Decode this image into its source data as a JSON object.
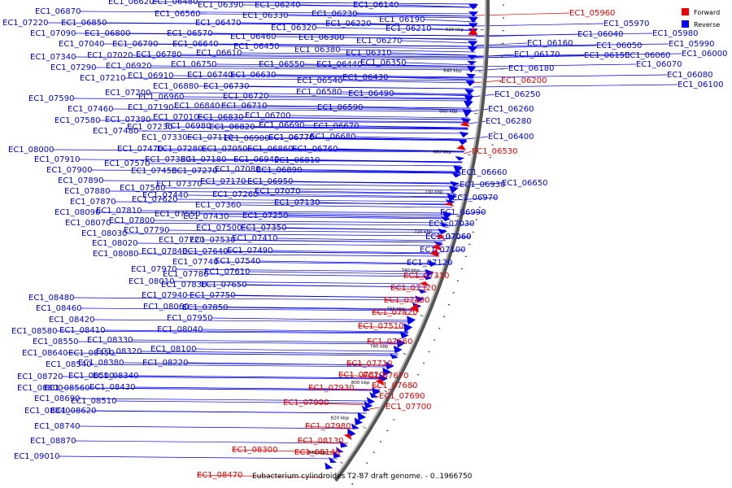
{
  "title": "Eubacterium cylindroides T2-87 draft genome. - 0..1966750",
  "legend": [
    {
      "label": "Forward",
      "color": "#ee0000"
    },
    {
      "label": "Reverse",
      "color": "#0000ee"
    }
  ],
  "ticks": [
    "580 kbp",
    "600 kbp",
    "620 kbp",
    "640 kbp",
    "660 kbp",
    "680 kbp",
    "700 kbp",
    "720 kbp",
    "740 kbp",
    "760 kbp",
    "780 kbp",
    "800 kbp",
    "820 kbp",
    "840 kbp"
  ],
  "reverse_labels": [
    "EC1_06620",
    "EC1_06480",
    "EC1_06390",
    "EC1_06240",
    "EC1_06140",
    "EC1_06870",
    "EC1_06560",
    "EC1_06330",
    "EC1_06230",
    "EC1_06190",
    "EC1_07220",
    "EC1_06850",
    "EC1_06470",
    "EC1_06320",
    "EC1_06220",
    "EC1_06210",
    "EC1_07090",
    "EC1_06800",
    "EC1_06570",
    "EC1_06460",
    "EC1_06300",
    "EC1_06270",
    "EC1_07040",
    "EC1_06790",
    "EC1_06640",
    "EC1_06450",
    "EC1_06380",
    "EC1_06310",
    "EC1_07340",
    "EC1_07020",
    "EC1_06770",
    "EC1_06610",
    "EC1_06550",
    "EC1_06440",
    "EC1_06350",
    "EC1_07290",
    "EC1_06920",
    "EC1_06780",
    "EC1_06750",
    "EC1_06630",
    "EC1_06540",
    "EC1_06430",
    "EC1_07210",
    "EC1_06910",
    "EC1_06740",
    "EC1_06880",
    "EC1_06730",
    "EC1_06580",
    "EC1_06490",
    "EC1_07200",
    "EC1_06960",
    "EC1_06720",
    "EC1_07590",
    "EC1_07460",
    "EC1_07190",
    "EC1_06840",
    "EC1_06710",
    "EC1_06590",
    "EC1_07010",
    "EC1_06830",
    "EC1_06700",
    "EC1_07580",
    "EC1_07390",
    "EC1_07230",
    "EC1_06980",
    "EC1_06820",
    "EC1_06690",
    "EC1_06670",
    "EC1_07480",
    "EC1_07330",
    "EC1_07110",
    "EC1_06900",
    "EC1_06770",
    "EC1_06680",
    "EC1_07470",
    "EC1_07280",
    "EC1_07050",
    "EC1_06860",
    "EC1_06760",
    "EC1_08000",
    "EC1_07380",
    "EC1_07180",
    "EC1_06940",
    "EC1_06810",
    "EC1_07910",
    "EC1_07570",
    "EC1_07450",
    "EC1_07270",
    "EC1_07080",
    "EC1_06890",
    "EC1_07900",
    "EC1_07170",
    "EC1_06950",
    "EC1_07890",
    "EC1_07560",
    "EC1_07370",
    "EC1_07260",
    "EC1_07070",
    "EC1_07880",
    "EC1_07440",
    "EC1_07060",
    "EC1_07870",
    "EC1_07620",
    "EC1_07360",
    "EC1_07130",
    "EC1_08090",
    "EC1_07810",
    "EC1_07550",
    "EC1_07250",
    "EC1_08070",
    "EC1_07800",
    "EC1_07430",
    "EC1_08030",
    "EC1_07790",
    "EC1_07500",
    "EC1_07350",
    "EC1_08020",
    "EC1_07720",
    "EC1_07530",
    "EC1_07410",
    "EC1_08080",
    "EC1_07840",
    "EC1_07640",
    "EC1_07490",
    "EC1_07740",
    "EC1_07540",
    "EC1_07970",
    "EC1_07780",
    "EC1_07610",
    "EC1_08010",
    "EC1_07830",
    "EC1_07650",
    "EC1_07940",
    "EC1_07750",
    "EC1_08060",
    "EC1_07850",
    "EC1_07950",
    "EC1_08040",
    "EC1_08480",
    "EC1_08460",
    "EC1_08420",
    "EC1_08580",
    "EC1_08410",
    "EC1_08550",
    "EC1_08330",
    "EC1_08640",
    "EC1_08450",
    "EC1_08320",
    "EC1_08100",
    "EC1_08540",
    "EC1_08380",
    "EC1_08220",
    "EC1_08720",
    "EC1_08500",
    "EC1_08340",
    "EC1_08800",
    "EC1_08560",
    "EC1_08430",
    "EC1_08690",
    "EC1_08510",
    "EC1_08840",
    "EC1_08620",
    "EC1_08740",
    "EC1_08870",
    "EC1_09010",
    "EC1_05970",
    "EC1_05980",
    "EC1_06040",
    "EC1_05990",
    "EC1_06160",
    "EC1_06050",
    "EC1_06070",
    "EC1_06170",
    "EC1_06150",
    "EC1_06060",
    "EC1_06000",
    "EC1_06180",
    "EC1_06080",
    "EC1_06100",
    "EC1_06250",
    "EC1_06260",
    "EC1_06280",
    "EC1_06400",
    "EC1_06660",
    "EC1_06930",
    "EC1_06650",
    "EC1_06970",
    "EC1_06990",
    "EC1_07030",
    "EC1_07060",
    "EC1_07100",
    "EC1_07120"
  ],
  "forward_labels": [
    "EC1_05960",
    "EC1_06200",
    "EC1_06530",
    "EC1_07310",
    "EC1_07320",
    "EC1_07400",
    "EC1_07420",
    "EC1_07510",
    "EC1_07660",
    "EC1_07710",
    "EC1_07820",
    "EC1_07670",
    "EC1_07680",
    "EC1_07690",
    "EC1_07700",
    "EC1_07930",
    "EC1_07990",
    "EC1_07980",
    "EC1_08130",
    "EC1_08140",
    "EC1_08300",
    "EC1_08470"
  ]
}
